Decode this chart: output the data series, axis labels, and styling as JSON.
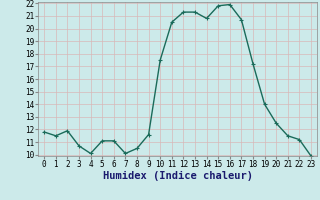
{
  "x": [
    0,
    1,
    2,
    3,
    4,
    5,
    6,
    7,
    8,
    9,
    10,
    11,
    12,
    13,
    14,
    15,
    16,
    17,
    18,
    19,
    20,
    21,
    22,
    23
  ],
  "y": [
    11.8,
    11.5,
    11.9,
    10.7,
    10.1,
    11.1,
    11.1,
    10.1,
    10.5,
    11.6,
    17.5,
    20.5,
    21.3,
    21.3,
    20.8,
    21.8,
    21.9,
    20.7,
    17.2,
    14.0,
    12.5,
    11.5,
    11.2,
    9.9
  ],
  "xlabel": "Humidex (Indice chaleur)",
  "ylim": [
    10,
    22
  ],
  "xlim": [
    -0.5,
    23.5
  ],
  "yticks": [
    10,
    11,
    12,
    13,
    14,
    15,
    16,
    17,
    18,
    19,
    20,
    21,
    22
  ],
  "xticks": [
    0,
    1,
    2,
    3,
    4,
    5,
    6,
    7,
    8,
    9,
    10,
    11,
    12,
    13,
    14,
    15,
    16,
    17,
    18,
    19,
    20,
    21,
    22,
    23
  ],
  "xtick_labels": [
    "0",
    "1",
    "2",
    "3",
    "4",
    "5",
    "6",
    "7",
    "8",
    "9",
    "10",
    "11",
    "12",
    "13",
    "14",
    "15",
    "16",
    "17",
    "18",
    "19",
    "20",
    "21",
    "22",
    "23"
  ],
  "line_color": "#1a6b5a",
  "marker": "+",
  "marker_size": 3.5,
  "line_width": 1.0,
  "bg_color": "#cceaea",
  "grid_color": "#d8b8b8",
  "tick_fontsize": 5.5,
  "label_fontsize": 7.5,
  "label_color": "#1a1a6e"
}
